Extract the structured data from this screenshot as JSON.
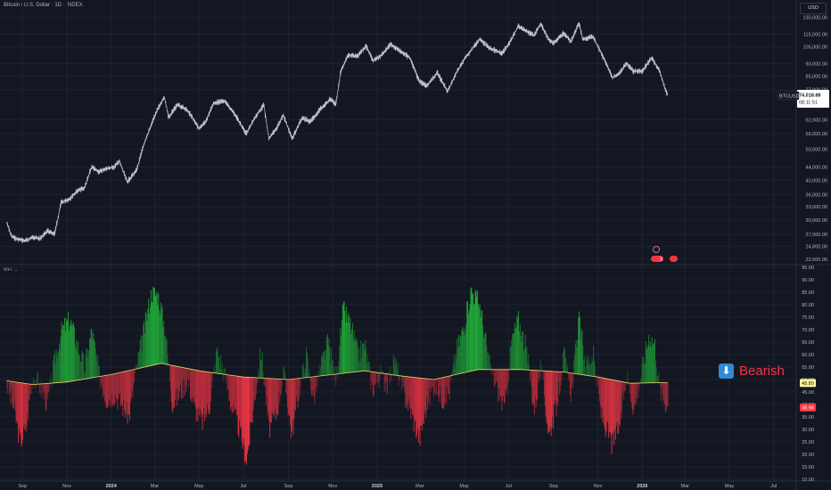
{
  "header": {
    "symbol_title": "Bitcoin / U.S. Dollar · 1D · INDEX",
    "currency": "USD"
  },
  "price_panel": {
    "y_ticks": [
      "130,000.00",
      "115,000.00",
      "105,000.00",
      "93,000.00",
      "85,000.00",
      "77,000.00",
      "62,000.00",
      "56,000.00",
      "50,000.00",
      "44,000.00",
      "40,000.00",
      "36,000.00",
      "33,000.00",
      "30,000.00",
      "27,000.00",
      "24,800.00",
      "22,600.00"
    ],
    "last_price_label": "74,018.88",
    "last_price_countdown": "08:11:51",
    "symbol_tag": "BTCUSD",
    "event_badges": [
      "3",
      ""
    ]
  },
  "indicator_panel": {
    "name": "MFI",
    "y_ticks": [
      "95.00",
      "90.00",
      "85.00",
      "80.00",
      "75.00",
      "70.00",
      "65.00",
      "60.00",
      "55.00",
      "50.00",
      "45.00",
      "40.00",
      "35.00",
      "30.00",
      "25.00",
      "20.00",
      "15.00",
      "10.00"
    ],
    "ma_value_label": "48.80",
    "mfi_value_label": "38.98",
    "signal_text": "Bearish",
    "signal_icon": "down-arrow-icon"
  },
  "x_axis": {
    "labels": [
      {
        "text": "Sep",
        "bold": false
      },
      {
        "text": "Nov",
        "bold": false
      },
      {
        "text": "2024",
        "bold": true
      },
      {
        "text": "Mar",
        "bold": false
      },
      {
        "text": "May",
        "bold": false
      },
      {
        "text": "Jul",
        "bold": false
      },
      {
        "text": "Sep",
        "bold": false
      },
      {
        "text": "Nov",
        "bold": false
      },
      {
        "text": "2025",
        "bold": true
      },
      {
        "text": "Mar",
        "bold": false
      },
      {
        "text": "May",
        "bold": false
      },
      {
        "text": "Jul",
        "bold": false
      },
      {
        "text": "Sep",
        "bold": false
      },
      {
        "text": "Nov",
        "bold": false
      },
      {
        "text": "2026",
        "bold": true
      },
      {
        "text": "Mar",
        "bold": false
      },
      {
        "text": "May",
        "bold": false
      },
      {
        "text": "Jul",
        "bold": false
      }
    ]
  },
  "colors": {
    "background": "#131722",
    "grid": "#1e222d",
    "price_line": "#d1d4dc",
    "mfi_bull": "#22ab3b",
    "mfi_bear": "#f23645",
    "mfi_ma": "#e8d36a",
    "last_price_tag": "#ffffff"
  },
  "chart_data": [
    {
      "type": "line",
      "scale": "log",
      "series": [
        {
          "name": "BTCUSD",
          "points": [
            [
              "2023-08-10",
              29500
            ],
            [
              "2023-08-17",
              26600
            ],
            [
              "2023-08-25",
              26100
            ],
            [
              "2023-09-05",
              25800
            ],
            [
              "2023-09-15",
              26500
            ],
            [
              "2023-09-25",
              26200
            ],
            [
              "2023-10-05",
              27700
            ],
            [
              "2023-10-15",
              27000
            ],
            [
              "2023-10-24",
              34000
            ],
            [
              "2023-11-05",
              35000
            ],
            [
              "2023-11-15",
              37000
            ],
            [
              "2023-11-25",
              37800
            ],
            [
              "2023-12-05",
              44000
            ],
            [
              "2023-12-15",
              42500
            ],
            [
              "2023-12-25",
              43500
            ],
            [
              "2024-01-05",
              44000
            ],
            [
              "2024-01-12",
              46000
            ],
            [
              "2024-01-23",
              39500
            ],
            [
              "2024-02-05",
              43000
            ],
            [
              "2024-02-15",
              52000
            ],
            [
              "2024-02-28",
              62000
            ],
            [
              "2024-03-05",
              67000
            ],
            [
              "2024-03-14",
              73000
            ],
            [
              "2024-03-20",
              63000
            ],
            [
              "2024-04-01",
              69000
            ],
            [
              "2024-04-13",
              67000
            ],
            [
              "2024-04-20",
              64000
            ],
            [
              "2024-05-01",
              58000
            ],
            [
              "2024-05-10",
              61000
            ],
            [
              "2024-05-21",
              70000
            ],
            [
              "2024-06-05",
              71000
            ],
            [
              "2024-06-20",
              64000
            ],
            [
              "2024-07-05",
              56000
            ],
            [
              "2024-07-15",
              62000
            ],
            [
              "2024-07-29",
              69000
            ],
            [
              "2024-08-05",
              54000
            ],
            [
              "2024-08-15",
              58000
            ],
            [
              "2024-08-25",
              64000
            ],
            [
              "2024-09-06",
              54000
            ],
            [
              "2024-09-20",
              63000
            ],
            [
              "2024-10-01",
              61000
            ],
            [
              "2024-10-15",
              67000
            ],
            [
              "2024-10-29",
              72000
            ],
            [
              "2024-11-05",
              69000
            ],
            [
              "2024-11-12",
              88000
            ],
            [
              "2024-11-22",
              99000
            ],
            [
              "2024-12-05",
              98000
            ],
            [
              "2024-12-17",
              106000
            ],
            [
              "2024-12-26",
              95000
            ],
            [
              "2025-01-05",
              98000
            ],
            [
              "2025-01-20",
              107000
            ],
            [
              "2025-02-01",
              102000
            ],
            [
              "2025-02-15",
              97000
            ],
            [
              "2025-02-28",
              82000
            ],
            [
              "2025-03-10",
              79000
            ],
            [
              "2025-03-25",
              87000
            ],
            [
              "2025-04-08",
              76000
            ],
            [
              "2025-04-20",
              87000
            ],
            [
              "2025-05-01",
              96000
            ],
            [
              "2025-05-22",
              111000
            ],
            [
              "2025-06-05",
              104000
            ],
            [
              "2025-06-22",
              100000
            ],
            [
              "2025-07-03",
              109000
            ],
            [
              "2025-07-14",
              122000
            ],
            [
              "2025-07-25",
              118000
            ],
            [
              "2025-08-05",
              114000
            ],
            [
              "2025-08-14",
              124000
            ],
            [
              "2025-08-25",
              111000
            ],
            [
              "2025-09-01",
              108000
            ],
            [
              "2025-09-15",
              116000
            ],
            [
              "2025-09-25",
              109000
            ],
            [
              "2025-10-06",
              125000
            ],
            [
              "2025-10-11",
              111000
            ],
            [
              "2025-10-25",
              113000
            ],
            [
              "2025-11-05",
              101000
            ],
            [
              "2025-11-21",
              84000
            ],
            [
              "2025-12-01",
              87000
            ],
            [
              "2025-12-10",
              93000
            ],
            [
              "2025-12-20",
              88000
            ],
            [
              "2026-01-01",
              88000
            ],
            [
              "2026-01-14",
              97000
            ],
            [
              "2026-01-25",
              88000
            ],
            [
              "2026-02-01",
              78000
            ],
            [
              "2026-02-05",
              74018.88
            ]
          ]
        }
      ],
      "ylim": [
        22000,
        140000
      ]
    },
    {
      "type": "area",
      "title": "MFI",
      "ylim": [
        10,
        95
      ],
      "baseline": "moving average",
      "series": [
        {
          "name": "MFI",
          "points": [
            [
              "2023-08-10",
              48
            ],
            [
              "2023-08-20",
              38
            ],
            [
              "2023-08-28",
              25
            ],
            [
              "2023-09-05",
              30
            ],
            [
              "2023-09-15",
              52
            ],
            [
              "2023-09-25",
              47
            ],
            [
              "2023-10-05",
              40
            ],
            [
              "2023-10-15",
              58
            ],
            [
              "2023-10-25",
              70
            ],
            [
              "2023-11-05",
              74
            ],
            [
              "2023-11-15",
              64
            ],
            [
              "2023-11-25",
              55
            ],
            [
              "2023-12-05",
              70
            ],
            [
              "2023-12-15",
              52
            ],
            [
              "2023-12-25",
              42
            ],
            [
              "2024-01-05",
              44
            ],
            [
              "2024-01-15",
              40
            ],
            [
              "2024-01-25",
              35
            ],
            [
              "2024-02-05",
              56
            ],
            [
              "2024-02-15",
              70
            ],
            [
              "2024-02-25",
              85
            ],
            [
              "2024-03-05",
              84
            ],
            [
              "2024-03-15",
              70
            ],
            [
              "2024-03-25",
              40
            ],
            [
              "2024-04-05",
              45
            ],
            [
              "2024-04-15",
              50
            ],
            [
              "2024-04-25",
              38
            ],
            [
              "2024-05-05",
              33
            ],
            [
              "2024-05-15",
              40
            ],
            [
              "2024-05-25",
              62
            ],
            [
              "2024-06-05",
              52
            ],
            [
              "2024-06-15",
              38
            ],
            [
              "2024-06-25",
              30
            ],
            [
              "2024-07-05",
              18
            ],
            [
              "2024-07-15",
              40
            ],
            [
              "2024-07-25",
              62
            ],
            [
              "2024-08-05",
              30
            ],
            [
              "2024-08-15",
              36
            ],
            [
              "2024-08-25",
              53
            ],
            [
              "2024-09-05",
              28
            ],
            [
              "2024-09-15",
              45
            ],
            [
              "2024-09-25",
              60
            ],
            [
              "2024-10-05",
              42
            ],
            [
              "2024-10-15",
              55
            ],
            [
              "2024-10-25",
              65
            ],
            [
              "2024-11-05",
              50
            ],
            [
              "2024-11-15",
              78
            ],
            [
              "2024-11-25",
              72
            ],
            [
              "2024-12-05",
              60
            ],
            [
              "2024-12-15",
              64
            ],
            [
              "2024-12-25",
              46
            ],
            [
              "2025-01-05",
              52
            ],
            [
              "2025-01-15",
              48
            ],
            [
              "2025-01-25",
              58
            ],
            [
              "2025-02-05",
              45
            ],
            [
              "2025-02-15",
              38
            ],
            [
              "2025-02-28",
              26
            ],
            [
              "2025-03-10",
              40
            ],
            [
              "2025-03-20",
              48
            ],
            [
              "2025-04-01",
              42
            ],
            [
              "2025-04-10",
              45
            ],
            [
              "2025-04-20",
              62
            ],
            [
              "2025-05-01",
              72
            ],
            [
              "2025-05-10",
              86
            ],
            [
              "2025-05-22",
              80
            ],
            [
              "2025-06-05",
              55
            ],
            [
              "2025-06-15",
              46
            ],
            [
              "2025-06-25",
              38
            ],
            [
              "2025-07-05",
              66
            ],
            [
              "2025-07-14",
              74
            ],
            [
              "2025-07-25",
              62
            ],
            [
              "2025-08-05",
              38
            ],
            [
              "2025-08-14",
              55
            ],
            [
              "2025-08-25",
              28
            ],
            [
              "2025-09-05",
              40
            ],
            [
              "2025-09-15",
              60
            ],
            [
              "2025-09-25",
              44
            ],
            [
              "2025-10-05",
              74
            ],
            [
              "2025-10-15",
              56
            ],
            [
              "2025-10-25",
              60
            ],
            [
              "2025-11-05",
              36
            ],
            [
              "2025-11-20",
              24
            ],
            [
              "2025-12-01",
              32
            ],
            [
              "2025-12-10",
              52
            ],
            [
              "2025-12-20",
              38
            ],
            [
              "2026-01-01",
              55
            ],
            [
              "2026-01-10",
              68
            ],
            [
              "2026-01-18",
              64
            ],
            [
              "2026-01-25",
              45
            ],
            [
              "2026-02-05",
              38.98
            ]
          ]
        },
        {
          "name": "MA",
          "points": [
            [
              "2023-08-10",
              49.5
            ],
            [
              "2023-09-15",
              48
            ],
            [
              "2023-11-01",
              49
            ],
            [
              "2024-01-01",
              52
            ],
            [
              "2024-03-10",
              56.5
            ],
            [
              "2024-05-01",
              53.5
            ],
            [
              "2024-07-01",
              51
            ],
            [
              "2024-09-01",
              50
            ],
            [
              "2024-11-01",
              52
            ],
            [
              "2024-12-15",
              53.5
            ],
            [
              "2025-02-01",
              51.5
            ],
            [
              "2025-03-20",
              50
            ],
            [
              "2025-05-20",
              54
            ],
            [
              "2025-07-20",
              54
            ],
            [
              "2025-09-15",
              53
            ],
            [
              "2025-11-01",
              51
            ],
            [
              "2025-12-15",
              48.5
            ],
            [
              "2026-02-05",
              48.8
            ]
          ]
        }
      ]
    }
  ]
}
